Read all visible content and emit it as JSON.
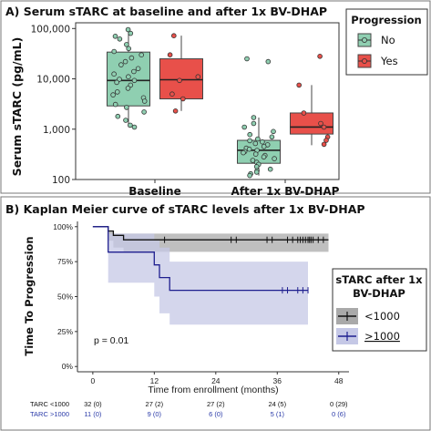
{
  "chart_data": [
    {
      "type": "box",
      "title": "A) Serum sTARC at baseline and after 1x BV-DHAP",
      "ylabel": "Serum sTARC (pg/mL)",
      "yscale": "log",
      "ylim": [
        100,
        130000
      ],
      "y_ticks": [
        100,
        1000,
        10000,
        100000
      ],
      "y_tick_labels": [
        "100",
        "1,000",
        "10,000",
        "100,000"
      ],
      "categories": [
        "Baseline",
        "After 1x BV-DHAP"
      ],
      "legend": {
        "title": "Progression",
        "entries": [
          "No",
          "Yes"
        ],
        "position": "top-right"
      },
      "colors": {
        "No": "#8fcfb1",
        "Yes": "#e8504a"
      },
      "boxes": [
        {
          "category": "Baseline",
          "group": "No",
          "min": 1100,
          "q1": 2900,
          "median": 9300,
          "q3": 34000,
          "max": 95000
        },
        {
          "category": "Baseline",
          "group": "Yes",
          "min": 2300,
          "q1": 4000,
          "median": 9600,
          "q3": 25000,
          "max": 72000
        },
        {
          "category": "After 1x BV-DHAP",
          "group": "No",
          "min": 120,
          "q1": 210,
          "median": 380,
          "q3": 600,
          "max": 1700
        },
        {
          "category": "After 1x BV-DHAP",
          "group": "Yes",
          "min": 480,
          "q1": 800,
          "median": 1100,
          "q3": 2100,
          "max": 7500
        }
      ],
      "points": {
        "Baseline|No": [
          95000,
          80000,
          70000,
          62000,
          48000,
          40000,
          35000,
          30000,
          26000,
          22000,
          19000,
          16000,
          14000,
          12500,
          11000,
          9800,
          9300,
          8500,
          7500,
          6500,
          5500,
          4800,
          4200,
          3600,
          3100,
          2700,
          2200,
          1800,
          1500,
          1200,
          1100
        ],
        "Baseline|Yes": [
          72000,
          30000,
          11000,
          9300,
          5000,
          4000,
          2300
        ],
        "After 1x BV-DHAP|No": [
          25000,
          22000,
          1700,
          1300,
          1100,
          900,
          780,
          700,
          640,
          590,
          560,
          520,
          490,
          450,
          420,
          400,
          380,
          360,
          340,
          320,
          300,
          280,
          260,
          240,
          220,
          200,
          180,
          160,
          150,
          140,
          130,
          120
        ],
        "After 1x BV-DHAP|Yes": [
          28000,
          7500,
          2100,
          1300,
          1100,
          700,
          600,
          500
        ]
      }
    },
    {
      "type": "line",
      "subtype": "kaplan-meier",
      "title": "B) Kaplan Meier curve of sTARC levels after 1x BV-DHAP",
      "xlabel": "Time from enrollment (months)",
      "ylabel": "Time To Progression",
      "xlim": [
        -3,
        50
      ],
      "ylim": [
        0,
        1
      ],
      "x_ticks": [
        0,
        12,
        24,
        36,
        48
      ],
      "y_ticks": [
        0,
        0.25,
        0.5,
        0.75,
        1.0
      ],
      "y_tick_labels": [
        "0%",
        "25%",
        "50%",
        "75%",
        "100%"
      ],
      "annotation": "p = 0.01",
      "legend": {
        "title": "sTARC after 1x BV-DHAP",
        "entries": [
          "<1000",
          ">1000"
        ],
        "position": "right"
      },
      "series": [
        {
          "name": "<1000",
          "color": "#111111",
          "band_color": "#a9a9a9",
          "steps": [
            [
              0,
              1.0
            ],
            [
              3,
              0.969
            ],
            [
              4,
              0.938
            ],
            [
              6,
              0.906
            ],
            [
              46,
              0.906
            ]
          ],
          "ci_steps": [
            [
              0,
              1.0,
              1.0
            ],
            [
              3,
              0.97,
              0.9
            ],
            [
              4,
              0.95,
              0.85
            ],
            [
              6,
              0.95,
              0.82
            ],
            [
              46,
              0.95,
              0.82
            ]
          ],
          "censor_times": [
            14,
            27,
            28,
            34,
            35,
            38,
            39,
            40,
            40.5,
            41,
            41.5,
            42,
            42.3,
            42.6,
            43,
            44,
            45
          ]
        },
        {
          "name": ">1000",
          "color": "#1f1f8f",
          "band_color": "#c5c8e6",
          "steps": [
            [
              0,
              1.0
            ],
            [
              3,
              0.818
            ],
            [
              12,
              0.727
            ],
            [
              13,
              0.636
            ],
            [
              15,
              0.545
            ],
            [
              42,
              0.545
            ]
          ],
          "ci_steps": [
            [
              0,
              1.0,
              1.0
            ],
            [
              3,
              0.95,
              0.6
            ],
            [
              12,
              0.9,
              0.5
            ],
            [
              13,
              0.85,
              0.38
            ],
            [
              15,
              0.75,
              0.3
            ],
            [
              42,
              0.75,
              0.3
            ]
          ],
          "censor_times": [
            37,
            38,
            40,
            41,
            42
          ]
        }
      ],
      "risk_table": {
        "rows": [
          {
            "label": "TARC <1000",
            "color": "#111111",
            "values": [
              "32 (0)",
              "27 (2)",
              "27 (2)",
              "24 (5)",
              "0 (29)"
            ]
          },
          {
            "label": "TARC >1000",
            "color": "#2a3aa8",
            "values": [
              "11 (0)",
              "9 (0)",
              "6 (0)",
              "5 (1)",
              "0 (6)"
            ]
          }
        ]
      }
    }
  ]
}
